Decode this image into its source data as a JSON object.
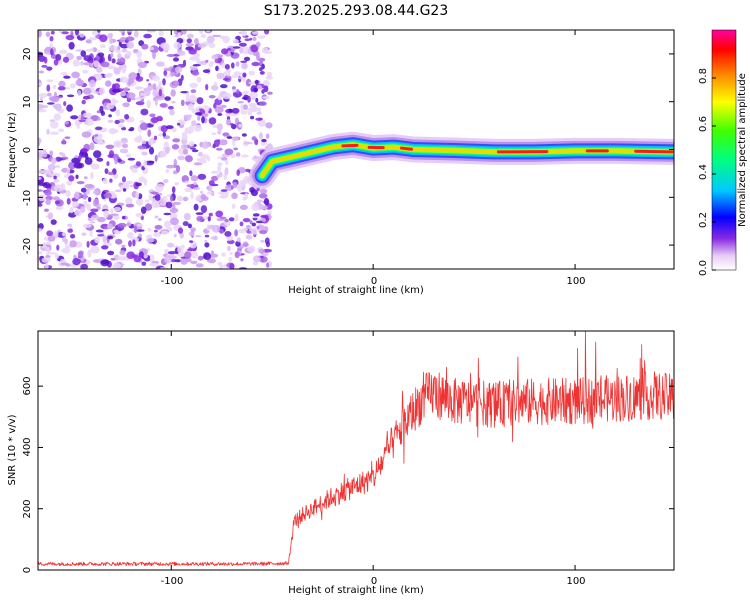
{
  "title": "S173.2025.293.08.44.G23",
  "colors": {
    "snr_line": "#ee3333",
    "frame": "#000000"
  },
  "chart_data": [
    {
      "type": "heatmap",
      "name": "spectrogram",
      "xlabel": "Height of straight line (km)",
      "ylabel": "Frequency (Hz)",
      "xlim": [
        -166,
        149
      ],
      "ylim": [
        -25,
        25
      ],
      "xticks": [
        -100,
        0,
        100
      ],
      "xtick_labels": [
        "-100",
        "0",
        "100"
      ],
      "yticks": [
        -20,
        -10,
        0,
        10,
        20
      ],
      "ytick_labels": [
        "-20",
        "-10",
        "0",
        "10",
        "20"
      ],
      "noise_region_x": [
        -166,
        -53
      ],
      "ridge": [
        {
          "x": -55,
          "y": -5.5
        },
        {
          "x": -50,
          "y": -2.5
        },
        {
          "x": -40,
          "y": -1.5
        },
        {
          "x": -30,
          "y": -0.5
        },
        {
          "x": -20,
          "y": 0.5
        },
        {
          "x": -10,
          "y": 1.0
        },
        {
          "x": 0,
          "y": 0.3
        },
        {
          "x": 10,
          "y": 0.5
        },
        {
          "x": 20,
          "y": 0.0
        },
        {
          "x": 40,
          "y": -0.2
        },
        {
          "x": 60,
          "y": -0.5
        },
        {
          "x": 80,
          "y": -0.5
        },
        {
          "x": 100,
          "y": -0.3
        },
        {
          "x": 120,
          "y": -0.3
        },
        {
          "x": 149,
          "y": -0.5
        }
      ],
      "colorbar": {
        "label": "Normalized spectral amplitude",
        "range": [
          0.0,
          1.0
        ],
        "ticks": [
          0.0,
          0.2,
          0.4,
          0.6,
          0.8
        ],
        "tick_labels": [
          "0.0",
          "0.2",
          "0.4",
          "0.6",
          "0.8"
        ]
      }
    },
    {
      "type": "line",
      "name": "snr",
      "xlabel": "Height of straight line (km)",
      "ylabel": "SNR (10 * v/v)",
      "xlim": [
        -166,
        149
      ],
      "ylim": [
        0,
        780
      ],
      "xticks": [
        -100,
        0,
        100
      ],
      "xtick_labels": [
        "-100",
        "0",
        "100"
      ],
      "yticks": [
        0,
        200,
        400,
        600
      ],
      "ytick_labels": [
        "0",
        "200",
        "400",
        "600"
      ],
      "series": [
        {
          "name": "SNR",
          "x": [
            -166,
            -150,
            -120,
            -90,
            -60,
            -42,
            -39,
            -35,
            -30,
            -20,
            -10,
            0,
            5,
            10,
            15,
            20,
            25,
            30,
            40,
            60,
            80,
            100,
            120,
            140,
            149
          ],
          "y": [
            20,
            20,
            20,
            20,
            20,
            22,
            160,
            180,
            200,
            240,
            270,
            300,
            360,
            420,
            470,
            520,
            560,
            580,
            550,
            540,
            550,
            550,
            560,
            570,
            560
          ]
        }
      ]
    }
  ]
}
